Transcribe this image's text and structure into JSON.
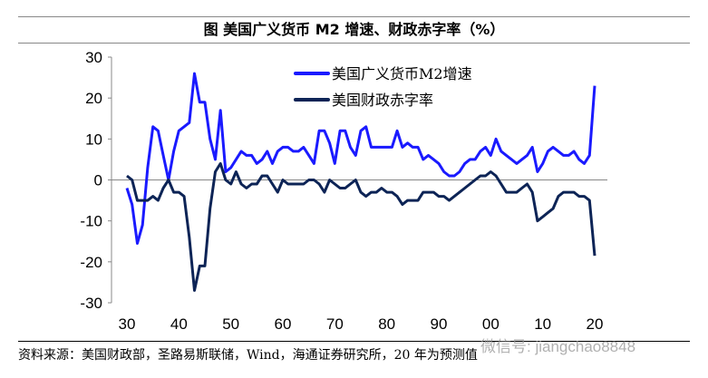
{
  "title": "图  美国广义货币 M2 增速、财政赤字率（%）",
  "source": "资料来源：美国财政部，圣路易斯联储，Wind，海通证券研究所，20 年为预测值",
  "watermark": "微信号: jiangchao8848",
  "chart_data": {
    "type": "line",
    "title": "美国广义货币 M2 增速、财政赤字率（%）",
    "xlabel": "",
    "ylabel": "",
    "ylim": [
      -30,
      30
    ],
    "yticks": [
      30,
      20,
      10,
      0,
      -10,
      -20,
      -30
    ],
    "xlim": [
      1930,
      2020
    ],
    "xticks": [
      1930,
      1940,
      1950,
      1960,
      1970,
      1980,
      1990,
      2000,
      2010,
      2020
    ],
    "xtick_labels": [
      "30",
      "40",
      "50",
      "60",
      "70",
      "80",
      "90",
      "00",
      "10",
      "20"
    ],
    "legend_position": "top-right",
    "x_start": 1930,
    "series": [
      {
        "name": "美国广义货币M2增速",
        "color": "#1a1aff",
        "values": [
          -2,
          -6,
          -15.5,
          -11,
          3,
          13,
          12,
          6,
          0,
          7,
          12,
          13,
          14,
          26,
          19,
          19,
          10,
          5,
          17,
          2,
          3,
          5,
          7,
          6,
          6,
          4,
          5,
          7,
          4,
          7,
          8,
          8,
          7,
          7,
          8,
          6,
          4,
          12,
          12,
          9,
          4,
          12,
          12,
          8,
          6,
          12,
          13,
          8,
          8,
          8,
          8,
          8,
          12,
          8,
          9,
          8,
          8,
          5,
          6,
          5,
          4,
          2,
          1,
          1,
          2,
          4,
          5,
          5,
          7,
          8,
          6,
          10,
          7,
          6,
          5,
          4,
          5,
          6,
          8,
          2,
          4,
          7,
          8,
          7,
          6,
          6,
          7,
          5,
          4,
          6,
          23
        ]
      },
      {
        "name": "美国财政赤字率",
        "color": "#0d2456",
        "values": [
          1,
          0,
          -5,
          -5,
          -5,
          -4,
          -5,
          -2,
          0,
          -3,
          -3,
          -4,
          -14,
          -27,
          -21,
          -21,
          -7,
          2,
          4,
          0,
          -1,
          2,
          -1,
          -2,
          -1,
          -1,
          1,
          1,
          -1,
          -3,
          0,
          -1,
          -1,
          -1,
          -1,
          0,
          0,
          -1,
          -3,
          0,
          -1,
          -2,
          -2,
          -1,
          0,
          -3,
          -4,
          -3,
          -3,
          -2,
          -3,
          -3,
          -4,
          -6,
          -5,
          -5,
          -5,
          -3,
          -3,
          -3,
          -4,
          -4,
          -5,
          -4,
          -3,
          -2,
          -1,
          0,
          1,
          1,
          2,
          1,
          -1,
          -3,
          -3,
          -3,
          -2,
          -1,
          -3,
          -10,
          -9,
          -8,
          -7,
          -4,
          -3,
          -3,
          -3,
          -4,
          -4,
          -5,
          -18.5
        ]
      }
    ]
  }
}
